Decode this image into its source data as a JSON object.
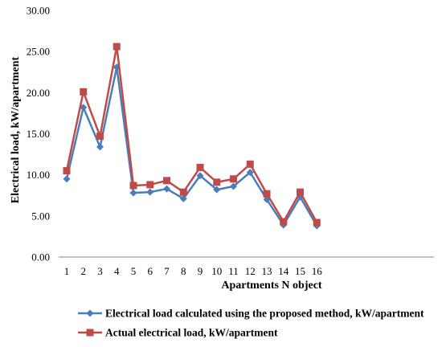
{
  "chart_data": {
    "type": "line",
    "title": "",
    "xlabel": "Apartments N object",
    "ylabel": "Electrical load, kW/apartment",
    "x": [
      "1",
      "2",
      "3",
      "4",
      "5",
      "6",
      "7",
      "8",
      "9",
      "10",
      "11",
      "12",
      "13",
      "14",
      "15",
      "16"
    ],
    "ylim": [
      0,
      30
    ],
    "yticks": [
      "0.00",
      "5.00",
      "10.00",
      "15.00",
      "20.00",
      "25.00",
      "30.00"
    ],
    "grid": false,
    "legend_position": "bottom",
    "series": [
      {
        "name": "Electrical load calculated using the proposed method, kW/apartment",
        "color": "#4a7ebb",
        "marker": "diamond",
        "values": [
          9.5,
          18.2,
          13.4,
          23.1,
          7.8,
          7.9,
          8.3,
          7.1,
          9.9,
          8.2,
          8.6,
          10.3,
          7.0,
          3.9,
          7.3,
          3.8
        ]
      },
      {
        "name": "Actual electrical load, kW/apartment",
        "color": "#be4b48",
        "marker": "square",
        "values": [
          10.5,
          20.1,
          14.7,
          25.6,
          8.7,
          8.8,
          9.3,
          7.9,
          10.9,
          9.1,
          9.5,
          11.3,
          7.7,
          4.3,
          7.9,
          4.2
        ]
      }
    ]
  }
}
